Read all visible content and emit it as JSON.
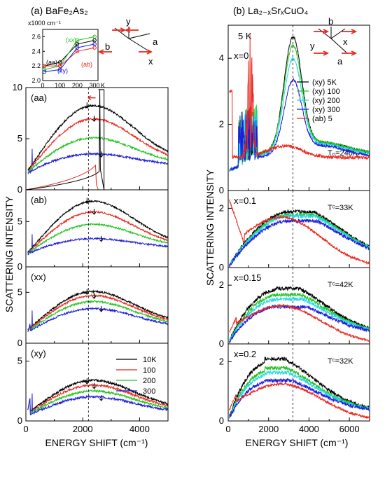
{
  "chart_data": [
    {
      "type": "line",
      "panel_title": "(a) BaFe₂As₂",
      "ylabel": "SCATTERING INTENSITY",
      "xlabel": "ENERGY SHIFT (cm⁻¹)",
      "x_ticks": [
        "0",
        "2000",
        "4000"
      ],
      "xlim": [
        0,
        5000
      ],
      "dashed_line_x": 2200,
      "axes_inset": {
        "labels": [
          "y",
          "b",
          "a",
          "x"
        ]
      },
      "legend": [
        {
          "name": "10K",
          "color": "#000000"
        },
        {
          "name": "100",
          "color": "#e8281e"
        },
        {
          "name": "200",
          "color": "#22c41e"
        },
        {
          "name": "300",
          "color": "#1d1ddb"
        }
      ],
      "subplots": [
        {
          "label": "(aa)",
          "ylim": [
            0,
            10
          ],
          "y_ticks": [
            "0",
            "5",
            "10"
          ],
          "series_peaks": [
            8.2,
            6.9,
            5.0,
            3.4
          ],
          "series_base": [
            2.5,
            2.4,
            2.3,
            2.2
          ],
          "has_laser_line": true
        },
        {
          "label": "(ab)",
          "ylim": [
            0,
            8.5
          ],
          "y_ticks": [
            "0",
            "5"
          ],
          "series_peaks": [
            7.2,
            6.0,
            4.6,
            3.0
          ],
          "series_base": [
            2.1,
            2.0,
            2.0,
            1.9
          ],
          "has_laser_line": false
        },
        {
          "label": "(xx)",
          "ylim": [
            0,
            7.5
          ],
          "y_ticks": [
            "0",
            "5"
          ],
          "series_peaks": [
            5.0,
            4.6,
            4.0,
            3.3
          ],
          "series_base": [
            1.7,
            1.6,
            1.5,
            1.4
          ],
          "has_laser_line": false
        },
        {
          "label": "(xy)",
          "ylim": [
            0,
            6.5
          ],
          "y_ticks": [
            "0",
            "5"
          ],
          "series_peaks": [
            3.3,
            2.9,
            2.4,
            1.9
          ],
          "series_base": [
            0.8,
            0.7,
            0.6,
            0.5
          ],
          "has_laser_line": false
        }
      ],
      "inset": {
        "unit": "x1000 cm⁻¹",
        "xlabel": "K",
        "x_ticks": [
          "0",
          "100",
          "200",
          "300"
        ],
        "y_ticks": [
          "2.0",
          "2.2",
          "2.4",
          "2.6"
        ],
        "ylim": [
          2.0,
          2.7
        ],
        "x": [
          10,
          100,
          200,
          300
        ],
        "series": [
          {
            "name": "(aa)",
            "color": "#000000",
            "values": [
              2.2,
              2.25,
              2.5,
              2.55
            ]
          },
          {
            "name": "(xx)",
            "color": "#22c41e",
            "values": [
              2.15,
              2.2,
              2.55,
              2.6
            ]
          },
          {
            "name": "(ab)",
            "color": "#e8281e",
            "values": [
              2.2,
              2.2,
              2.4,
              2.45
            ]
          },
          {
            "name": "(xy)",
            "color": "#1d1ddb",
            "values": [
              2.12,
              2.15,
              2.45,
              2.5
            ]
          }
        ]
      }
    },
    {
      "type": "line",
      "panel_title": "(b) La₂₋ₓSrₓCuO₄",
      "temperature_label": "5 K",
      "ylabel": "SCATTERING INTENSITY",
      "xlabel": "ENERGY SHIFT (cm⁻¹)",
      "x_ticks": [
        "0",
        "2000",
        "4000",
        "6000"
      ],
      "xlim": [
        0,
        7000
      ],
      "dashed_line_x": 3200,
      "axes_inset": {
        "labels": [
          "b",
          "y",
          "x",
          "a"
        ]
      },
      "legend": [
        {
          "name": "(xy)   5K",
          "color": "#000000"
        },
        {
          "name": "(xy) 100",
          "color": "#22c41e"
        },
        {
          "name": "(xy) 200",
          "color": "#22d8e8"
        },
        {
          "name": "(xy) 300",
          "color": "#1d1ddb"
        },
        {
          "name": "(ab)   5",
          "color": "#e8281e"
        }
      ],
      "subplots": [
        {
          "label": "x=0",
          "note": "Tₙ=240K",
          "ylim": [
            0,
            5
          ],
          "y_ticks": [
            "0",
            "2",
            "4"
          ]
        },
        {
          "label": "x=0.1",
          "note": "Tᶜ=33K",
          "ylim": [
            0,
            2.6
          ],
          "y_ticks": [
            "0",
            "2"
          ]
        },
        {
          "label": "x=0.15",
          "note": "Tᶜ=42K",
          "ylim": [
            0,
            2.6
          ],
          "y_ticks": [
            "0",
            "2"
          ]
        },
        {
          "label": "x=0.2",
          "note": "Tᶜ=32K",
          "ylim": [
            0,
            2.6
          ],
          "y_ticks": [
            "0",
            "2"
          ]
        }
      ]
    }
  ]
}
